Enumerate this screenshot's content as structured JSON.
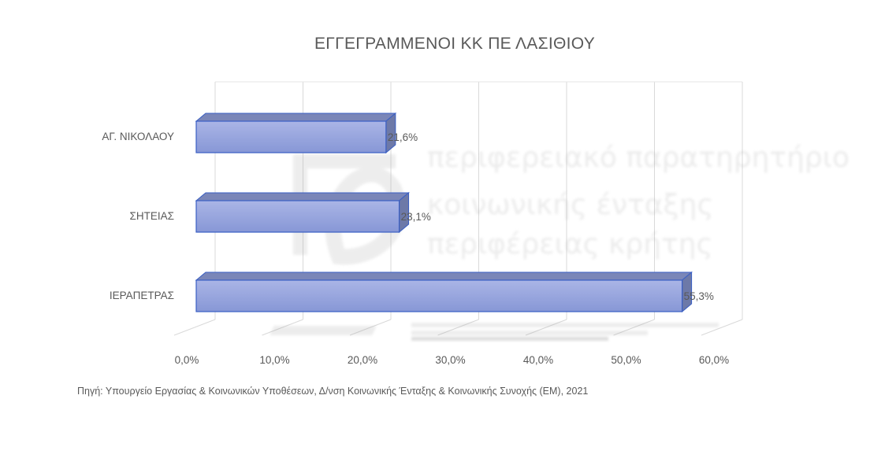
{
  "chart_data": {
    "type": "bar",
    "orientation": "horizontal",
    "style": "3d-clustered",
    "title": "ΕΓΓΕΓΡΑΜΜΕΝΟΙ ΚΚ ΠΕ ΛΑΣΙΘΙΟΥ",
    "categories": [
      "ΑΓ. ΝΙΚΟΛΑΟΥ",
      "ΣΗΤΕΙΑΣ",
      "ΙΕΡΑΠΕΤΡΑΣ"
    ],
    "values": [
      21.6,
      23.1,
      55.3
    ],
    "data_labels": [
      "21,6%",
      "23,1%",
      "55,3%"
    ],
    "xlim": [
      0,
      60
    ],
    "x_ticks": [
      0,
      10,
      20,
      30,
      40,
      50,
      60
    ],
    "x_tick_labels": [
      "0,0%",
      "10,0%",
      "20,0%",
      "30,0%",
      "40,0%",
      "50,0%",
      "60,0%"
    ],
    "grid": true,
    "legend": "none",
    "bar_color": "#8e9fdc",
    "bar_top_color": "#7a86b8",
    "bar_edge_color": "#3a5fc4"
  },
  "source_note": "Πηγή: Υπουργείο Εργασίας & Κοινωνικών Υποθέσεων, Δ/νση Κοινωνικής Ένταξης & Κοινωνικής Συνοχής (ΕΜ), 2021",
  "watermark": {
    "line1": "περιφερειακό παρατηρητήριο",
    "line2": "κοινωνικής ένταξης",
    "line3": "περιφέρειας κρήτης"
  }
}
